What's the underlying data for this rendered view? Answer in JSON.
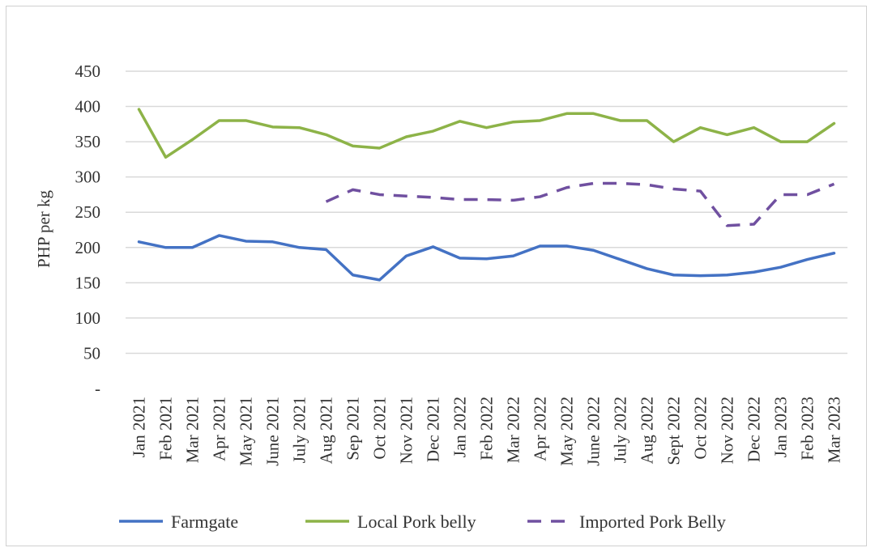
{
  "chart_data": {
    "type": "line",
    "ylabel": "PHP per kg",
    "xlabel": "",
    "ylim": [
      0,
      450
    ],
    "yticks": [
      "-",
      "50",
      "100",
      "150",
      "200",
      "250",
      "300",
      "350",
      "400",
      "450"
    ],
    "grid": true,
    "legend_position": "bottom",
    "categories": [
      "Jan 2021",
      "Feb 2021",
      "Mar 2021",
      "Apr 2021",
      "May 2021",
      "June 2021",
      "July 2021",
      "Aug 2021",
      "Sep 2021",
      "Oct 2021",
      "Nov 2021",
      "Dec 2021",
      "Jan 2022",
      "Feb 2022",
      "Mar 2022",
      "Apr 2022",
      "May 2022",
      "June 2022",
      "July 2022",
      "Aug 2022",
      "Sept 2022",
      "Oct 2022",
      "Nov 2022",
      "Dec 2022",
      "Jan 2023",
      "Feb 2023",
      "Mar 2023"
    ],
    "series": [
      {
        "name": "Farmgate",
        "color": "#4472C4",
        "dash": false,
        "values": [
          208,
          200,
          200,
          217,
          209,
          208,
          200,
          197,
          161,
          154,
          188,
          201,
          185,
          184,
          188,
          202,
          202,
          196,
          183,
          170,
          161,
          160,
          161,
          165,
          172,
          183,
          192
        ]
      },
      {
        "name": "Local Pork belly",
        "color": "#8DB348",
        "dash": false,
        "values": [
          396,
          328,
          353,
          380,
          380,
          371,
          370,
          360,
          344,
          341,
          357,
          365,
          379,
          370,
          378,
          380,
          390,
          390,
          380,
          380,
          350,
          370,
          360,
          370,
          350,
          350,
          376
        ]
      },
      {
        "name": "Imported Pork Belly",
        "color": "#7050A0",
        "dash": true,
        "values": [
          null,
          null,
          null,
          null,
          null,
          null,
          null,
          265,
          282,
          275,
          273,
          271,
          268,
          268,
          267,
          272,
          285,
          291,
          291,
          289,
          283,
          280,
          231,
          233,
          275,
          275,
          290
        ]
      }
    ]
  }
}
